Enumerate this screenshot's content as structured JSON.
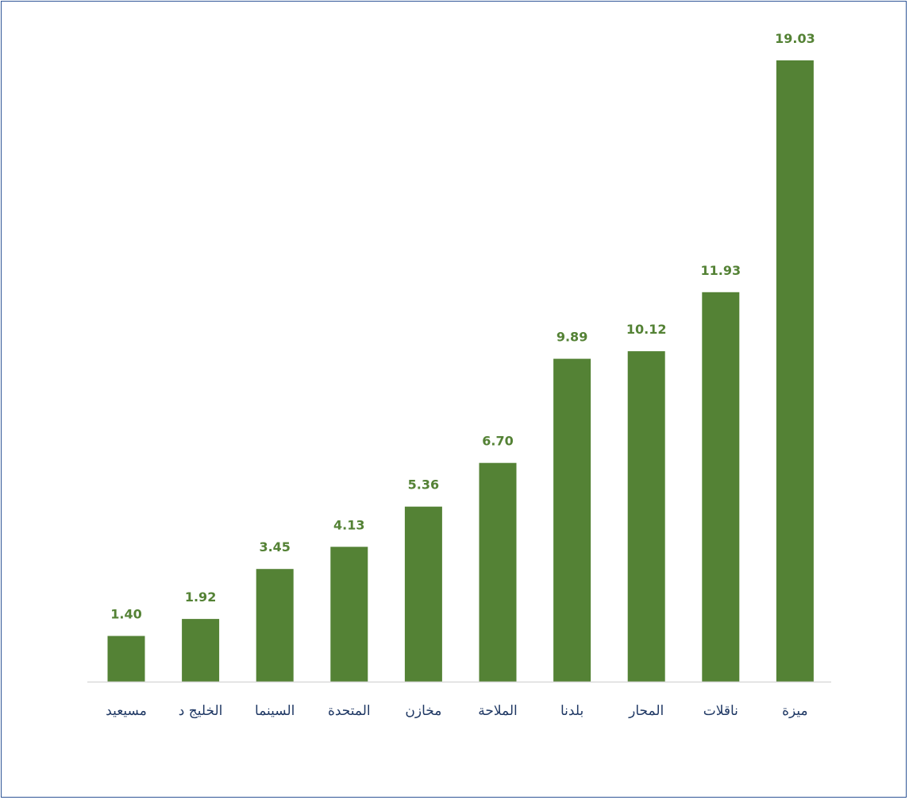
{
  "chart_data": {
    "type": "bar",
    "categories": [
      "مسيعيد",
      "الخليج د",
      "السينما",
      "المتحدة",
      "مخازن",
      "الملاحة",
      "بلدنا",
      "المحار",
      "ناقلات",
      "ميزة"
    ],
    "values": [
      1.4,
      1.92,
      3.45,
      4.13,
      5.36,
      6.7,
      9.89,
      10.12,
      11.93,
      19.03
    ],
    "value_labels": [
      "1.40",
      "1.92",
      "3.45",
      "4.13",
      "5.36",
      "6.70",
      "9.89",
      "10.12",
      "11.93",
      "19.03"
    ],
    "ylim": [
      0,
      19.03
    ],
    "grid": false,
    "legend": "none"
  },
  "colors": {
    "bar": "#548235",
    "value_label": "#548235",
    "category_label": "#1f3864",
    "axis_line": "#d9d9d9",
    "frame_border": "#2f5597"
  }
}
